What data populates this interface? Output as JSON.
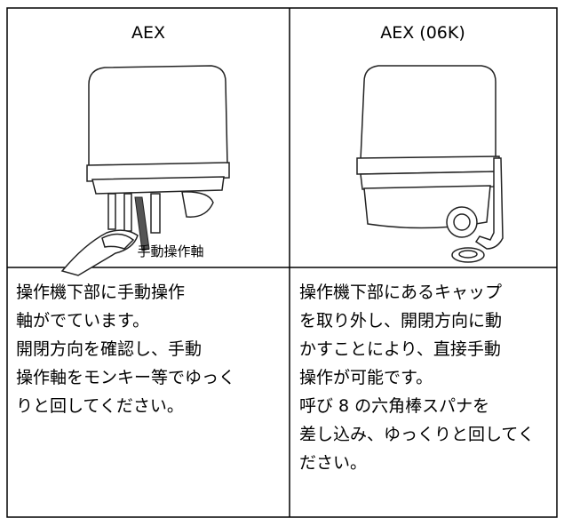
{
  "table": {
    "columns": [
      {
        "title": "AEX",
        "caption": "手動操作軸",
        "lines": [
          "操作機下部に手動操作",
          "軸がでています。",
          "開閉方向を確認し、手動",
          "操作軸をモンキー等でゆっく",
          "りと回してください。"
        ]
      },
      {
        "title": "AEX (06K)",
        "lines": [
          "操作機下部にあるキャップ",
          "を取り外し、開閉方向に動",
          "かすことにより、直接手動",
          "操作が可能です。",
          "呼び 8 の六角棒スパナを",
          "差し込み、ゆっくりと回してく",
          "ださい。"
        ]
      }
    ]
  }
}
